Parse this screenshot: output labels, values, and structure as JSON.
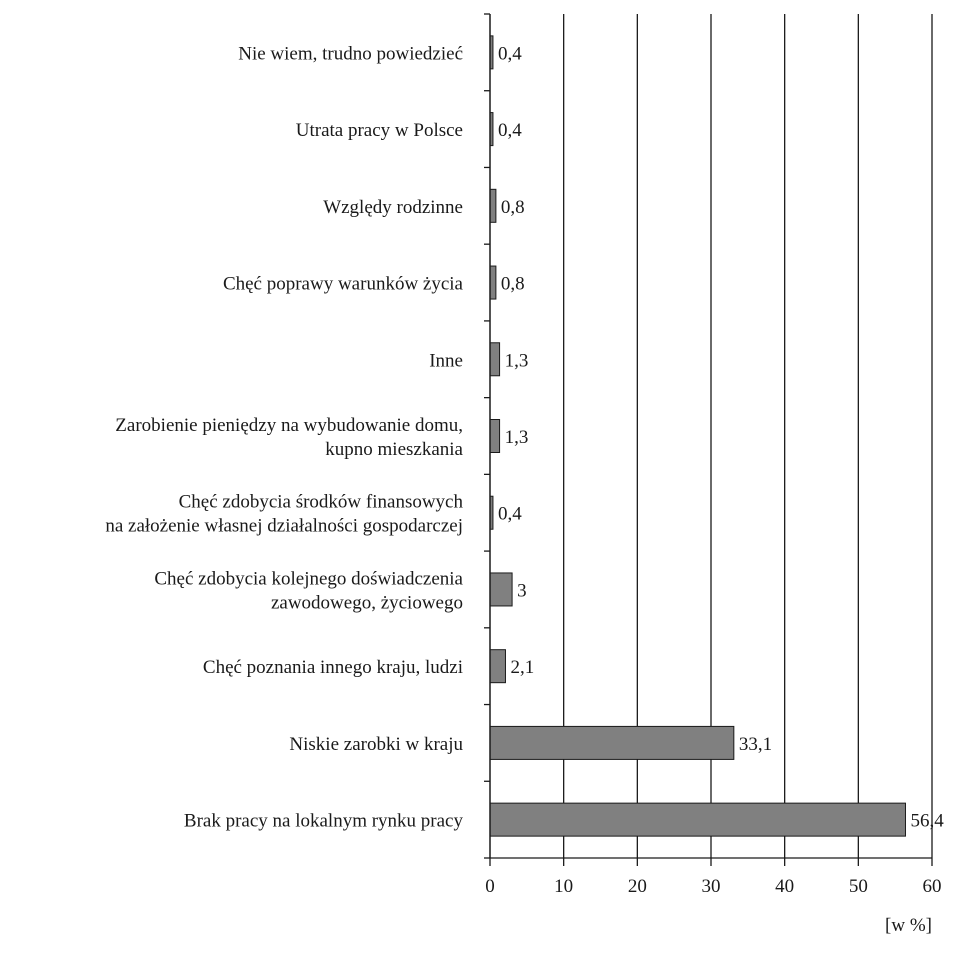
{
  "chart_data": {
    "type": "bar",
    "orientation": "horizontal",
    "categories": [
      [
        "Nie wiem, trudno powiedzieć"
      ],
      [
        "Utrata pracy w Polsce"
      ],
      [
        "Względy rodzinne"
      ],
      [
        "Chęć poprawy warunków życia"
      ],
      [
        "Inne"
      ],
      [
        "Zarobienie pieniędzy na wybudowanie domu,",
        "kupno mieszkania"
      ],
      [
        "Chęć zdobycia środków finansowych",
        "na założenie własnej działalności gospodarczej"
      ],
      [
        "Chęć zdobycia kolejnego doświadczenia",
        "zawodowego, życiowego"
      ],
      [
        "Chęć poznania innego kraju, ludzi"
      ],
      [
        "Niskie zarobki w kraju"
      ],
      [
        "Brak pracy na lokalnym rynku pracy"
      ]
    ],
    "values": [
      0.4,
      0.4,
      0.8,
      0.8,
      1.3,
      1.3,
      0.4,
      3,
      2.1,
      33.1,
      56.4
    ],
    "value_labels": [
      "0,4",
      "0,4",
      "0,8",
      "0,8",
      "1,3",
      "1,3",
      "0,4",
      "3",
      "2,1",
      "33,1",
      "56,4"
    ],
    "xlim": [
      0,
      60
    ],
    "xticks": [
      "0",
      "10",
      "20",
      "30",
      "40",
      "50",
      "60"
    ],
    "xunit": "[w %]",
    "grid": "vertical",
    "legend": "none",
    "colors": {
      "bar": "#808080",
      "bar_edge": "#1a1a1a",
      "axis": "#1a1a1a",
      "grid": "#1a1a1a"
    }
  }
}
